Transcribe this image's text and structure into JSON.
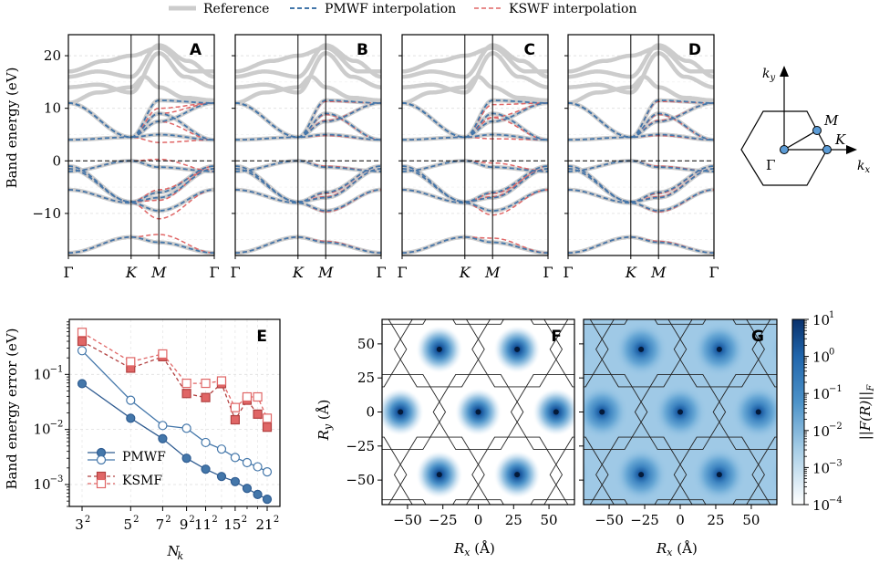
{
  "legend": {
    "reference": "Reference",
    "pmwf": "PMWF interpolation",
    "kswf": "KSWF interpolation"
  },
  "colors": {
    "reference": "#cccccc",
    "pmwf": "#4477aa",
    "kswf": "#e06666",
    "pmwf_dark": "#2f5c91",
    "kswf_dark": "#b24040"
  },
  "chart_data": [
    {
      "type": "line",
      "panels": [
        "A",
        "B",
        "C",
        "D"
      ],
      "ylabel": "Band energy (eV)",
      "xticks": [
        "Γ",
        "K",
        "M",
        "Γ"
      ],
      "yticks": [
        "20",
        "10",
        "0",
        "−10"
      ],
      "ylim": [
        -18,
        24
      ],
      "fermi_level": 0,
      "valence_bands_eV": {
        "Gamma": [
          -1.0,
          -1.5,
          -5.5,
          -17.5
        ],
        "K": [
          -7.8,
          -7.8,
          -8.0,
          -14.5
        ],
        "M": [
          -6.0,
          -7.0,
          -9.5,
          -15.5
        ]
      },
      "conduction_bands_eV": {
        "Gamma": [
          11.0,
          11.0,
          4.0
        ],
        "K": [
          4.5,
          4.5,
          4.5
        ],
        "M": [
          11.5,
          7.5,
          5.0
        ]
      }
    },
    {
      "type": "inset",
      "labels": [
        "k_y",
        "k_x",
        "Γ",
        "M",
        "K"
      ]
    },
    {
      "type": "line",
      "panel": "E",
      "xlabel": "N_k",
      "ylabel": "Band energy error (eV)",
      "yscale": "log",
      "ylim": [
        0.0004,
        1
      ],
      "xticks": [
        "3",
        "5",
        "7",
        "9",
        "11",
        "15",
        "21"
      ],
      "x": [
        3,
        5,
        7,
        9,
        11,
        13,
        15,
        17,
        19,
        21
      ],
      "series": [
        {
          "name": "PMWF",
          "values": [
            0.068,
            0.016,
            0.0068,
            0.003,
            0.0019,
            0.0014,
            0.00113,
            0.00085,
            0.00066,
            0.00054
          ]
        },
        {
          "name": "PMWF interpolation",
          "values": [
            0.27,
            0.034,
            0.0118,
            0.0105,
            0.0058,
            0.0044,
            0.0031,
            0.0025,
            0.0021,
            0.0017
          ]
        },
        {
          "name": "KSMF",
          "values": [
            0.4,
            0.13,
            0.21,
            0.045,
            0.038,
            0.068,
            0.015,
            0.034,
            0.019,
            0.011
          ]
        },
        {
          "name": "KSWF interpolation",
          "values": [
            0.58,
            0.17,
            0.235,
            0.069,
            0.069,
            0.076,
            0.025,
            0.039,
            0.039,
            0.016
          ]
        }
      ],
      "legend_entries": [
        "PMWF",
        "KSMF"
      ]
    },
    {
      "type": "heatmap",
      "panels": [
        "F",
        "G"
      ],
      "xlabel": "R_x (Å)",
      "ylabel": "R_y (Å)",
      "xticks": [
        "−50",
        "−25",
        "0",
        "25",
        "50"
      ],
      "yticks": [
        "50",
        "25",
        "0",
        "−25",
        "−50"
      ],
      "xlim": [
        -68,
        68
      ],
      "ylim": [
        -68,
        68
      ],
      "peaks_A": [
        [
          -27.5,
          46
        ],
        [
          27.5,
          46
        ],
        [
          -55,
          0
        ],
        [
          0,
          0
        ],
        [
          55,
          0
        ],
        [
          -27.5,
          -46
        ],
        [
          27.5,
          -46
        ]
      ],
      "colorbar": {
        "label": "||F(R)||_F",
        "scale": "log",
        "ticks": [
          "10",
          "10",
          "10",
          "10",
          "10",
          "10"
        ],
        "exponents": [
          "1",
          "0",
          "−1",
          "−2",
          "−3",
          "−4"
        ]
      }
    }
  ]
}
